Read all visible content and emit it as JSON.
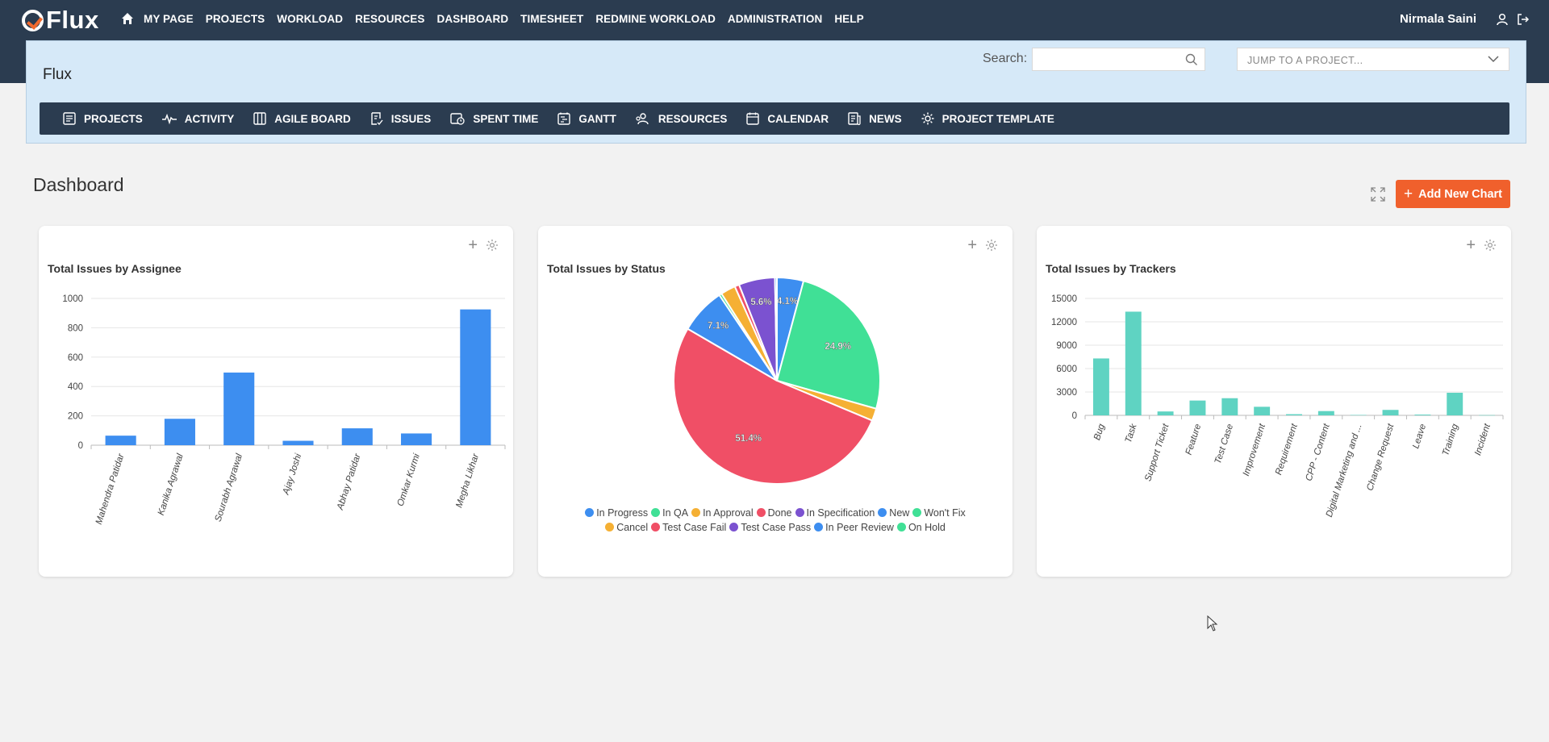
{
  "app": {
    "logo": "Flux",
    "user": "Nirmala Saini"
  },
  "topnav": [
    "MY PAGE",
    "PROJECTS",
    "WORKLOAD",
    "RESOURCES",
    "DASHBOARD",
    "TIMESHEET",
    "REDMINE WORKLOAD",
    "ADMINISTRATION",
    "HELP"
  ],
  "project": {
    "name": "Flux",
    "search_label": "Search:",
    "search_value": "",
    "jump_placeholder": "JUMP TO A PROJECT...",
    "menu": [
      {
        "label": "PROJECTS",
        "icon": "projects-icon"
      },
      {
        "label": "ACTIVITY",
        "icon": "activity-icon"
      },
      {
        "label": "AGILE BOARD",
        "icon": "agile-board-icon"
      },
      {
        "label": "ISSUES",
        "icon": "issues-icon"
      },
      {
        "label": "SPENT TIME",
        "icon": "spent-time-icon"
      },
      {
        "label": "GANTT",
        "icon": "gantt-icon"
      },
      {
        "label": "RESOURCES",
        "icon": "resources-icon"
      },
      {
        "label": "CALENDAR",
        "icon": "calendar-icon"
      },
      {
        "label": "NEWS",
        "icon": "news-icon"
      },
      {
        "label": "PROJECT TEMPLATE",
        "icon": "project-template-icon"
      }
    ]
  },
  "dashboard": {
    "title": "Dashboard",
    "add_button": "Add New Chart"
  },
  "colors": {
    "nav": "#2b3c50",
    "accent": "#f0602c",
    "bar_blue": "#3d8ef0",
    "bar_teal": "#5fd3c2"
  },
  "chart_data": [
    {
      "type": "bar",
      "title": "Total Issues by Assignee",
      "categories": [
        "Mahendra Patidar",
        "Kanika Agrawal",
        "Sourabh Agrawal",
        "Ajay Joshi",
        "Abhay Patidar",
        "Omkar Kurmi",
        "Megha Likhar"
      ],
      "values": [
        65,
        180,
        495,
        30,
        115,
        80,
        925
      ],
      "ylim": [
        0,
        1000
      ],
      "yticks": [
        0,
        200,
        400,
        600,
        800,
        1000
      ],
      "color": "#3d8ef0",
      "grid": true
    },
    {
      "type": "pie",
      "title": "Total Issues by Status",
      "slices": [
        {
          "name": "In Progress",
          "value": 4.1,
          "color": "#3d8ef0",
          "label": "4.1%"
        },
        {
          "name": "Won't Fix",
          "value": 24.9,
          "color": "#40e096",
          "label": "24.9%"
        },
        {
          "name": "Cancel",
          "value": 1.9,
          "color": "#f5b034",
          "label": ""
        },
        {
          "name": "Done",
          "value": 51.4,
          "color": "#f04f66",
          "label": "51.4%"
        },
        {
          "name": "New",
          "value": 7.1,
          "color": "#3d8ef0",
          "label": "7.1%"
        },
        {
          "name": "On Hold",
          "value": 0.4,
          "color": "#40e096",
          "label": ""
        },
        {
          "name": "In Approval",
          "value": 2.3,
          "color": "#f5b034",
          "label": ""
        },
        {
          "name": "Test Case Fail",
          "value": 0.7,
          "color": "#f04f66",
          "label": ""
        },
        {
          "name": "In Specification",
          "value": 5.6,
          "color": "#7b52d0",
          "label": "5.6%"
        },
        {
          "name": "In Peer Review",
          "value": 0.3,
          "color": "#3d8ef0",
          "label": ""
        }
      ],
      "legend": [
        {
          "name": "In Progress",
          "color": "#3d8ef0"
        },
        {
          "name": "In QA",
          "color": "#40e096"
        },
        {
          "name": "In Approval",
          "color": "#f5b034"
        },
        {
          "name": "Done",
          "color": "#f04f66"
        },
        {
          "name": "In Specification",
          "color": "#7b52d0"
        },
        {
          "name": "New",
          "color": "#3d8ef0"
        },
        {
          "name": "Won't Fix",
          "color": "#40e096"
        },
        {
          "name": "Cancel",
          "color": "#f5b034"
        },
        {
          "name": "Test Case Fail",
          "color": "#f04f66"
        },
        {
          "name": "Test Case Pass",
          "color": "#7b52d0"
        },
        {
          "name": "In Peer Review",
          "color": "#3d8ef0"
        },
        {
          "name": "On Hold",
          "color": "#40e096"
        }
      ],
      "legend_position": "bottom"
    },
    {
      "type": "bar",
      "title": "Total Issues by Trackers",
      "categories": [
        "Bug",
        "Task",
        "Support Ticket",
        "Feature",
        "Test Case",
        "Improvement",
        "Requirement",
        "CPP - Content",
        "Digital Marketing and ...",
        "Change Request",
        "Leave",
        "Training",
        "Incident"
      ],
      "values": [
        7300,
        13300,
        500,
        1900,
        2200,
        1100,
        150,
        550,
        50,
        700,
        100,
        2900,
        30
      ],
      "ylim": [
        0,
        15000
      ],
      "yticks": [
        0,
        3000,
        6000,
        9000,
        12000,
        15000
      ],
      "color": "#5fd3c2",
      "grid": true
    }
  ]
}
